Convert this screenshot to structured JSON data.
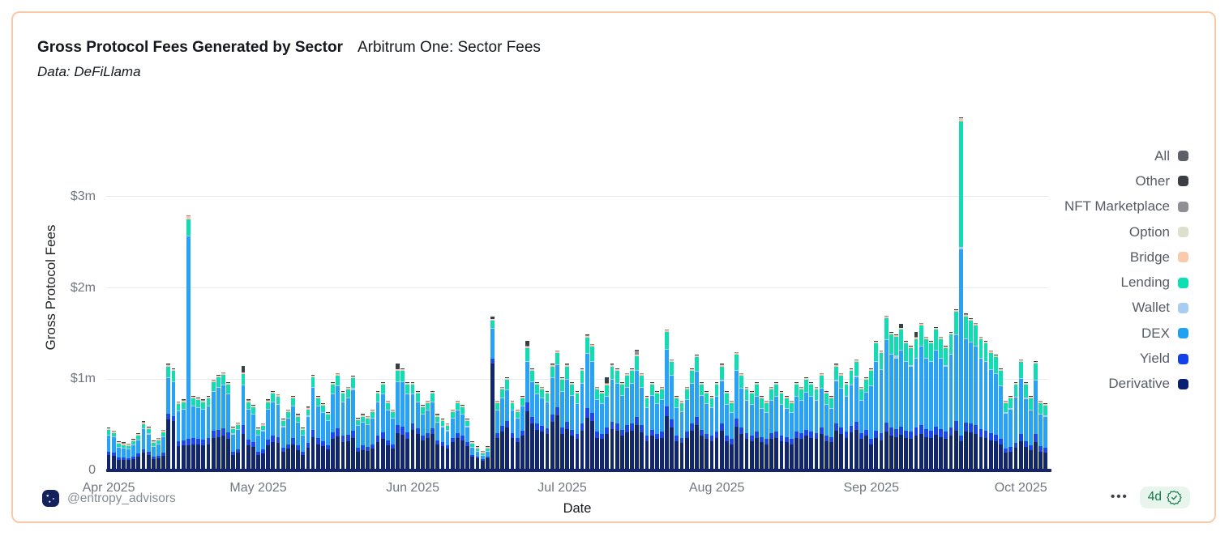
{
  "footer": {
    "handle": "@entropy_advisors",
    "menu_dots": "•••",
    "badge_text": "4d"
  },
  "chart_data": {
    "type": "bar",
    "stacked": true,
    "title": "Gross Protocol Fees Generated by Sector",
    "title_suffix": "Arbitrum One: Sector Fees",
    "source_note": "Data: DeFiLlama",
    "xlabel": "Date",
    "ylabel": "Gross Protocol Fees",
    "unit": "thousand USD per day",
    "start_date": "2025-04-01",
    "days": 189,
    "ylim_k": [
      0,
      4010
    ],
    "grid": true,
    "legend_position": "right",
    "y_ticks": [
      {
        "label": "0",
        "value_k": 0
      },
      {
        "label": "$1m",
        "value_k": 1000
      },
      {
        "label": "$2m",
        "value_k": 2000
      },
      {
        "label": "$3m",
        "value_k": 3000
      }
    ],
    "x_ticks": [
      {
        "label": "Apr 2025",
        "day_index": 0
      },
      {
        "label": "May 2025",
        "day_index": 30
      },
      {
        "label": "Jun 2025",
        "day_index": 61
      },
      {
        "label": "Jul 2025",
        "day_index": 91
      },
      {
        "label": "Aug 2025",
        "day_index": 122
      },
      {
        "label": "Sep 2025",
        "day_index": 153
      },
      {
        "label": "Oct 2025",
        "day_index": 183
      }
    ],
    "stack_order_bottom_to_top": [
      "Derivative",
      "Yield",
      "DEX",
      "Wallet",
      "Lending",
      "Bridge",
      "Option",
      "NFT Marketplace",
      "Other"
    ],
    "series": [
      {
        "name": "Derivative",
        "color": "#12266b",
        "data": [
          155,
          145,
          100,
          100,
          95,
          110,
          135,
          175,
          155,
          105,
          115,
          145,
          540,
          520,
          250,
          260,
          260,
          270,
          265,
          260,
          270,
          335,
          350,
          360,
          325,
          155,
          175,
          385,
          260,
          240,
          155,
          170,
          260,
          290,
          280,
          185,
          220,
          270,
          205,
          155,
          230,
          350,
          270,
          245,
          210,
          325,
          355,
          290,
          305,
          340,
          190,
          205,
          195,
          220,
          290,
          325,
          255,
          220,
          390,
          375,
          325,
          430,
          385,
          315,
          340,
          385,
          270,
          250,
          225,
          290,
          340,
          315,
          250,
          135,
          115,
          90,
          115,
          1150,
          340,
          405,
          450,
          340,
          290,
          360,
          630,
          495,
          430,
          405,
          385,
          515,
          585,
          380,
          435,
          360,
          325,
          420,
          560,
          520,
          340,
          325,
          380,
          435,
          420,
          360,
          400,
          420,
          480,
          400,
          305,
          360,
          325,
          340,
          580,
          455,
          305,
          285,
          340,
          420,
          475,
          360,
          325,
          305,
          340,
          415,
          305,
          270,
          460,
          380,
          325,
          305,
          340,
          290,
          270,
          325,
          340,
          305,
          290,
          270,
          340,
          325,
          360,
          340,
          325,
          380,
          305,
          290,
          415,
          380,
          340,
          395,
          430,
          325,
          360,
          265,
          335,
          310,
          405,
          360,
          350,
          370,
          335,
          325,
          360,
          385,
          350,
          335,
          370,
          350,
          325,
          360,
          420,
          300,
          410,
          395,
          385,
          350,
          335,
          310,
          300,
          265,
          180,
          190,
          230,
          300,
          240,
          200,
          295,
          190,
          180
        ]
      },
      {
        "name": "Yield",
        "color": "#1a46ea",
        "data": [
          35,
          35,
          25,
          25,
          20,
          25,
          30,
          40,
          35,
          25,
          25,
          35,
          60,
          60,
          55,
          55,
          70,
          65,
          60,
          60,
          65,
          80,
          80,
          85,
          75,
          35,
          40,
          90,
          60,
          55,
          35,
          40,
          60,
          70,
          65,
          45,
          50,
          65,
          50,
          35,
          55,
          80,
          65,
          60,
          50,
          75,
          85,
          70,
          70,
          80,
          45,
          50,
          45,
          50,
          70,
          75,
          60,
          50,
          90,
          90,
          75,
          65,
          60,
          50,
          55,
          60,
          40,
          40,
          35,
          45,
          55,
          50,
          40,
          20,
          15,
          15,
          15,
          60,
          55,
          65,
          70,
          55,
          45,
          55,
          100,
          75,
          65,
          65,
          60,
          80,
          90,
          70,
          80,
          65,
          60,
          75,
          105,
          95,
          65,
          60,
          70,
          80,
          75,
          65,
          75,
          75,
          90,
          75,
          55,
          65,
          60,
          65,
          105,
          85,
          55,
          55,
          65,
          75,
          90,
          65,
          60,
          55,
          65,
          80,
          60,
          55,
          90,
          75,
          65,
          60,
          65,
          55,
          55,
          65,
          65,
          60,
          55,
          55,
          65,
          65,
          70,
          65,
          65,
          75,
          60,
          55,
          80,
          75,
          65,
          75,
          85,
          65,
          70,
          65,
          85,
          80,
          100,
          90,
          85,
          95,
          85,
          80,
          90,
          95,
          85,
          85,
          95,
          85,
          80,
          90,
          105,
          60,
          100,
          100,
          95,
          85,
          85,
          80,
          75,
          65,
          45,
          50,
          55,
          85,
          65,
          55,
          85,
          55,
          50
        ]
      },
      {
        "name": "DEX",
        "color": "#27a2f4",
        "data": [
          177,
          162,
          107,
          97,
          97,
          122,
          147,
          217,
          187,
          112,
          127,
          167,
          392,
          367,
          322,
          332,
          2216,
          347,
          337,
          327,
          347,
          427,
          457,
          472,
          417,
          187,
          207,
          438,
          327,
          297,
          177,
          202,
          327,
          367,
          357,
          227,
          277,
          347,
          247,
          177,
          287,
          457,
          347,
          307,
          262,
          417,
          467,
          367,
          397,
          442,
          232,
          247,
          242,
          277,
          367,
          417,
          322,
          277,
          468,
          487,
          417,
          322,
          282,
          227,
          242,
          282,
          192,
          167,
          152,
          212,
          242,
          227,
          167,
          77,
          57,
          37,
          57,
          322,
          242,
          302,
          342,
          242,
          212,
          267,
          443,
          382,
          322,
          302,
          282,
          402,
          457,
          392,
          457,
          372,
          327,
          437,
          592,
          552,
          347,
          327,
          338,
          457,
          437,
          372,
          412,
          437,
          502,
          412,
          307,
          372,
          327,
          347,
          622,
          477,
          307,
          282,
          347,
          437,
          497,
          372,
          327,
          307,
          382,
          467,
          337,
          287,
          527,
          422,
          357,
          337,
          382,
          312,
          287,
          357,
          382,
          337,
          312,
          287,
          382,
          357,
          402,
          382,
          357,
          422,
          337,
          312,
          467,
          422,
          382,
          447,
          492,
          357,
          402,
          577,
          747,
          692,
          902,
          802,
          772,
          832,
          747,
          717,
          753,
          857,
          772,
          747,
          832,
          772,
          717,
          802,
          942,
          2048,
          912,
          887,
          857,
          772,
          747,
          692,
          662,
          577,
          382,
          412,
          492,
          597,
          462,
          387,
          587,
          352,
          342
        ]
      },
      {
        "name": "Wallet",
        "color": "#a9cdf2",
        "base": 10,
        "overrides": {
          "49": 28,
          "158": 35,
          "171": 20
        }
      },
      {
        "name": "Lending",
        "color": "#12dcb4",
        "data": [
          45,
          40,
          30,
          30,
          30,
          35,
          40,
          50,
          45,
          30,
          35,
          45,
          120,
          115,
          75,
          75,
          180,
          80,
          80,
          75,
          80,
          100,
          105,
          105,
          95,
          45,
          50,
          115,
          75,
          70,
          45,
          50,
          75,
          85,
          80,
          55,
          65,
          80,
          60,
          45,
          70,
          105,
          80,
          70,
          60,
          95,
          105,
          85,
          90,
          100,
          55,
          60,
          60,
          65,
          85,
          95,
          75,
          65,
          115,
          110,
          95,
          95,
          85,
          70,
          75,
          85,
          60,
          55,
          50,
          65,
          75,
          70,
          55,
          30,
          25,
          20,
          25,
          80,
          75,
          90,
          100,
          75,
          65,
          80,
          140,
          110,
          95,
          90,
          85,
          115,
          130,
          120,
          140,
          115,
          100,
          130,
          175,
          165,
          110,
          100,
          120,
          140,
          130,
          115,
          125,
          130,
          150,
          125,
          95,
          115,
          100,
          110,
          185,
          145,
          95,
          90,
          110,
          130,
          150,
          115,
          100,
          95,
          125,
          150,
          110,
          100,
          165,
          135,
          115,
          110,
          125,
          105,
          100,
          115,
          125,
          110,
          105,
          100,
          125,
          115,
          130,
          125,
          115,
          135,
          110,
          105,
          150,
          135,
          125,
          145,
          155,
          115,
          130,
          155,
          195,
          180,
          235,
          210,
          205,
          215,
          195,
          190,
          210,
          225,
          205,
          195,
          215,
          205,
          190,
          210,
          245,
          1380,
          240,
          230,
          225,
          205,
          195,
          180,
          175,
          155,
          105,
          110,
          135,
          180,
          145,
          120,
          175,
          115,
          110
        ]
      },
      {
        "name": "Bridge",
        "color": "#f9c8a8",
        "base": 14,
        "overrides": {
          "16": 30,
          "171": 28
        }
      },
      {
        "name": "Option",
        "color": "#dde0cc",
        "base": 4
      },
      {
        "name": "NFT Marketplace",
        "color": "#8e9095",
        "base": 4,
        "overrides": {
          "106": 45
        }
      },
      {
        "name": "Other",
        "color": "#3b3e44",
        "base": 6,
        "overrides": {
          "27": 70,
          "58": 55,
          "77": 22,
          "84": 55,
          "100": 60,
          "159": 45,
          "162": 55
        }
      }
    ],
    "legend": [
      {
        "label": "All",
        "color": "#5d6066"
      },
      {
        "label": "Other",
        "color": "#3b3e44"
      },
      {
        "label": "NFT Marketplace",
        "color": "#8e9095"
      },
      {
        "label": "Option",
        "color": "#dde0cc"
      },
      {
        "label": "Bridge",
        "color": "#fbc9ab"
      },
      {
        "label": "Lending",
        "color": "#0ddfb4"
      },
      {
        "label": "Wallet",
        "color": "#a9cdf2"
      },
      {
        "label": "DEX",
        "color": "#1ea1f2"
      },
      {
        "label": "Yield",
        "color": "#1440eb"
      },
      {
        "label": "Derivative",
        "color": "#0c1e74"
      }
    ]
  }
}
